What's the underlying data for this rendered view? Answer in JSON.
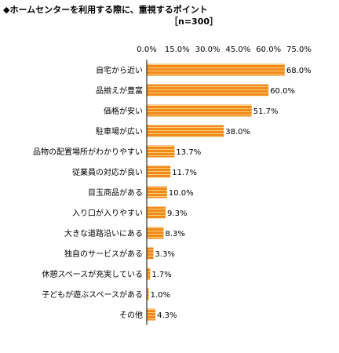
{
  "title": "◆ホームセンターを利用する際に、重視するポイント",
  "sample": "［n=300］",
  "chart_data": {
    "type": "bar",
    "orientation": "horizontal",
    "title": "◆ホームセンターを利用する際に、重視するポイント",
    "subtitle": "［n=300］",
    "xlim": [
      0,
      75
    ],
    "tick_labels": [
      "0.0%",
      "15.0%",
      "30.0%",
      "45.0%",
      "60.0%",
      "75.0%"
    ],
    "tick_values": [
      0,
      15,
      30,
      45,
      60,
      75
    ],
    "xlabel": "",
    "ylabel": "",
    "grid": false,
    "bar_color": "#f08a1c",
    "stripe_color": "#fbd27a",
    "categories": [
      "自宅から近い",
      "品揃えが豊富",
      "価格が安い",
      "駐車場が広い",
      "品物の配置場所がわかりやすい",
      "従業員の対応が良い",
      "目玉商品がある",
      "入り口が入りやすい",
      "大きな道路沿いにある",
      "独自のサービスがある",
      "休憩スペースが充実している",
      "子どもが遊ぶスペースがある",
      "その他"
    ],
    "values": [
      68.0,
      60.0,
      51.7,
      38.0,
      13.7,
      11.7,
      10.0,
      9.3,
      8.3,
      3.3,
      1.7,
      1.0,
      4.3
    ],
    "value_labels": [
      "68.0%",
      "60.0%",
      "51.7%",
      "38.0%",
      "13.7%",
      "11.7%",
      "10.0%",
      "9.3%",
      "8.3%",
      "3.3%",
      "1.7%",
      "1.0%",
      "4.3%"
    ]
  }
}
